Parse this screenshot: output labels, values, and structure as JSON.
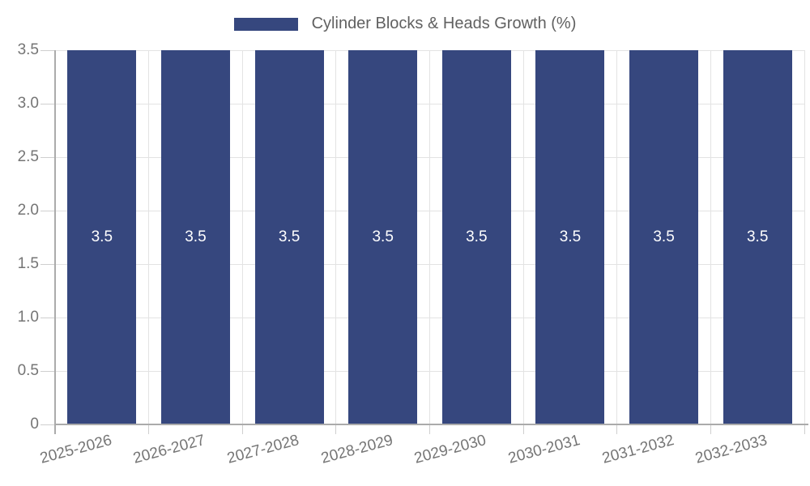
{
  "legend": {
    "label": "Cylinder Blocks & Heads Growth (%)"
  },
  "colors": {
    "bar": "#36477E",
    "bar_label": "#ffffff",
    "grid": "#e3e3e3",
    "tick_mark": "#cfcfcf",
    "axis": "#ababab",
    "tick_text": "#757575",
    "legend_text": "#616161",
    "background": "#ffffff"
  },
  "chart_data": {
    "type": "bar",
    "title": "",
    "xlabel": "",
    "ylabel": "",
    "legend": "Cylinder Blocks & Heads Growth (%)",
    "legend_position": "top-center",
    "grid": true,
    "categories": [
      "2025-2026",
      "2026-2027",
      "2027-2028",
      "2028-2029",
      "2029-2030",
      "2030-2031",
      "2031-2032",
      "2032-2033"
    ],
    "values": [
      3.5,
      3.5,
      3.5,
      3.5,
      3.5,
      3.5,
      3.5,
      3.5
    ],
    "bar_labels": [
      "3.5",
      "3.5",
      "3.5",
      "3.5",
      "3.5",
      "3.5",
      "3.5",
      "3.5"
    ],
    "ylim": [
      0,
      3.5
    ],
    "yticks": [
      0,
      0.5,
      1,
      1.5,
      2,
      2.5,
      3,
      3.5
    ],
    "ytick_labels": [
      "0",
      "0.5",
      "1.0",
      "1.5",
      "2.0",
      "2.5",
      "3.0",
      "3.5"
    ]
  }
}
